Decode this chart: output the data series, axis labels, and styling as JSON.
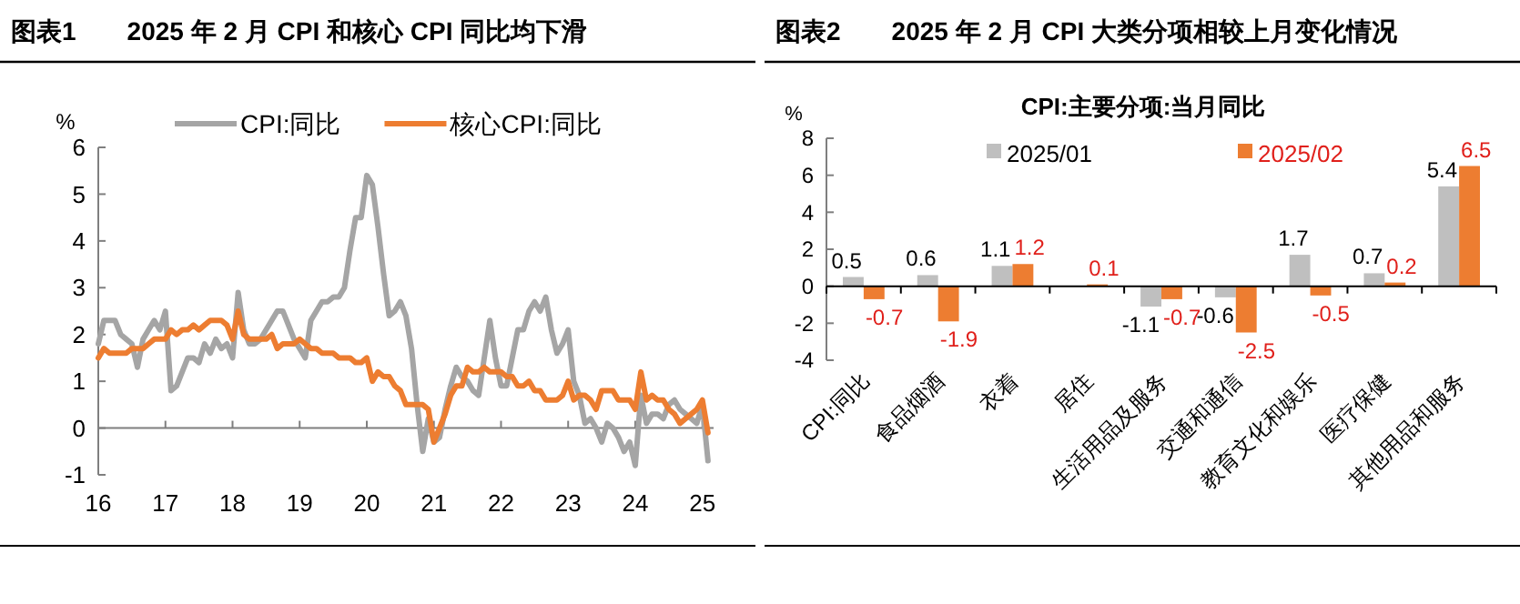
{
  "chart_data": [
    {
      "type": "line",
      "title": "图表1　　2025 年 2 月 CPI 和核心 CPI 同比均下滑",
      "ylabel": "%",
      "legend": "top",
      "x": [
        "2016-01",
        "2016-02",
        "2016-03",
        "2016-04",
        "2016-05",
        "2016-06",
        "2016-07",
        "2016-08",
        "2016-09",
        "2016-10",
        "2016-11",
        "2016-12",
        "2017-01",
        "2017-02",
        "2017-03",
        "2017-04",
        "2017-05",
        "2017-06",
        "2017-07",
        "2017-08",
        "2017-09",
        "2017-10",
        "2017-11",
        "2017-12",
        "2018-01",
        "2018-02",
        "2018-03",
        "2018-04",
        "2018-05",
        "2018-06",
        "2018-07",
        "2018-08",
        "2018-09",
        "2018-10",
        "2018-11",
        "2018-12",
        "2019-01",
        "2019-02",
        "2019-03",
        "2019-04",
        "2019-05",
        "2019-06",
        "2019-07",
        "2019-08",
        "2019-09",
        "2019-10",
        "2019-11",
        "2019-12",
        "2020-01",
        "2020-02",
        "2020-03",
        "2020-04",
        "2020-05",
        "2020-06",
        "2020-07",
        "2020-08",
        "2020-09",
        "2020-10",
        "2020-11",
        "2020-12",
        "2021-01",
        "2021-02",
        "2021-03",
        "2021-04",
        "2021-05",
        "2021-06",
        "2021-07",
        "2021-08",
        "2021-09",
        "2021-10",
        "2021-11",
        "2021-12",
        "2022-01",
        "2022-02",
        "2022-03",
        "2022-04",
        "2022-05",
        "2022-06",
        "2022-07",
        "2022-08",
        "2022-09",
        "2022-10",
        "2022-11",
        "2022-12",
        "2023-01",
        "2023-02",
        "2023-03",
        "2023-04",
        "2023-05",
        "2023-06",
        "2023-07",
        "2023-08",
        "2023-09",
        "2023-10",
        "2023-11",
        "2023-12",
        "2024-01",
        "2024-02",
        "2024-03",
        "2024-04",
        "2024-05",
        "2024-06",
        "2024-07",
        "2024-08",
        "2024-09",
        "2024-10",
        "2024-11",
        "2024-12",
        "2025-01",
        "2025-02"
      ],
      "series": [
        {
          "name": "CPI:同比",
          "color": "#a5a5a5",
          "values": [
            1.8,
            2.3,
            2.3,
            2.3,
            2.0,
            1.9,
            1.8,
            1.3,
            1.9,
            2.1,
            2.3,
            2.1,
            2.5,
            0.8,
            0.9,
            1.2,
            1.5,
            1.5,
            1.4,
            1.8,
            1.6,
            1.9,
            1.7,
            1.8,
            1.5,
            2.9,
            2.1,
            1.8,
            1.8,
            1.9,
            2.1,
            2.3,
            2.5,
            2.5,
            2.2,
            1.9,
            1.7,
            1.5,
            2.3,
            2.5,
            2.7,
            2.7,
            2.8,
            2.8,
            3.0,
            3.8,
            4.5,
            4.5,
            5.4,
            5.2,
            4.3,
            3.3,
            2.4,
            2.5,
            2.7,
            2.4,
            1.7,
            0.5,
            -0.5,
            0.2,
            -0.3,
            -0.2,
            0.4,
            0.9,
            1.3,
            1.1,
            1.0,
            0.8,
            0.7,
            1.5,
            2.3,
            1.5,
            0.9,
            0.9,
            1.5,
            2.1,
            2.1,
            2.5,
            2.7,
            2.5,
            2.8,
            2.1,
            1.6,
            1.8,
            2.1,
            1.0,
            0.7,
            0.1,
            0.2,
            0.0,
            -0.3,
            0.1,
            0.0,
            -0.2,
            -0.5,
            -0.3,
            -0.8,
            0.7,
            0.1,
            0.3,
            0.3,
            0.2,
            0.5,
            0.6,
            0.4,
            0.3,
            0.2,
            0.1,
            0.5,
            -0.7
          ]
        },
        {
          "name": "核心CPI:同比",
          "color": "#ed7d31",
          "values": [
            1.5,
            1.7,
            1.6,
            1.6,
            1.6,
            1.6,
            1.7,
            1.7,
            1.7,
            1.8,
            1.9,
            1.9,
            1.9,
            2.1,
            2.0,
            2.1,
            2.1,
            2.2,
            2.1,
            2.2,
            2.3,
            2.3,
            2.3,
            2.2,
            1.9,
            2.5,
            2.0,
            1.9,
            1.9,
            1.9,
            1.9,
            2.0,
            1.7,
            1.8,
            1.8,
            1.8,
            1.9,
            1.8,
            1.7,
            1.7,
            1.6,
            1.6,
            1.6,
            1.5,
            1.5,
            1.5,
            1.4,
            1.4,
            1.5,
            1.0,
            1.2,
            1.1,
            1.1,
            0.9,
            0.8,
            0.5,
            0.5,
            0.5,
            0.5,
            0.4,
            -0.3,
            0.0,
            0.3,
            0.7,
            0.9,
            0.9,
            1.3,
            1.2,
            1.2,
            1.3,
            1.2,
            1.2,
            1.2,
            1.1,
            1.1,
            0.9,
            0.9,
            1.0,
            0.8,
            0.8,
            0.6,
            0.6,
            0.6,
            0.7,
            1.0,
            0.6,
            0.7,
            0.7,
            0.6,
            0.4,
            0.8,
            0.8,
            0.8,
            0.6,
            0.6,
            0.6,
            0.4,
            1.2,
            0.6,
            0.7,
            0.6,
            0.6,
            0.4,
            0.3,
            0.1,
            0.2,
            0.3,
            0.4,
            0.6,
            -0.1
          ]
        }
      ],
      "xlim": [
        "2016-01",
        "2025-03"
      ],
      "xticks": [
        {
          "value": "2016-01",
          "label": "16"
        },
        {
          "value": "2017-01",
          "label": "17"
        },
        {
          "value": "2018-01",
          "label": "18"
        },
        {
          "value": "2019-01",
          "label": "19"
        },
        {
          "value": "2020-01",
          "label": "20"
        },
        {
          "value": "2021-01",
          "label": "21"
        },
        {
          "value": "2022-01",
          "label": "22"
        },
        {
          "value": "2023-01",
          "label": "23"
        },
        {
          "value": "2024-01",
          "label": "24"
        },
        {
          "value": "2025-01",
          "label": "25"
        }
      ],
      "ylim": [
        -1,
        6
      ],
      "yticks": [
        -1,
        0,
        1,
        2,
        3,
        4,
        5,
        6
      ]
    },
    {
      "type": "bar",
      "title": "图表2　　2025 年 2 月 CPI 大类分项相较上月变化情况",
      "subtitle": "CPI:主要分项:当月同比",
      "ylabel": "%",
      "legend": "top",
      "categories": [
        "CPI:同比",
        "食品烟酒",
        "衣着",
        "居住",
        "生活用品及服务",
        "交通和通信",
        "教育文化和娱乐",
        "医疗保健",
        "其他用品和服务"
      ],
      "series": [
        {
          "name": "2025/01",
          "color": "#bfbfbf",
          "values": [
            0.5,
            0.6,
            1.1,
            0,
            -1.1,
            -0.6,
            1.7,
            0.7,
            5.4
          ],
          "value_labels": [
            "0.5",
            "0.6",
            "1.1",
            null,
            "-1.1",
            "-0.6",
            "1.7",
            "0.7",
            "5.4"
          ]
        },
        {
          "name": "2025/02",
          "color": "#ed7d31",
          "values": [
            -0.7,
            -1.9,
            1.2,
            0.1,
            -0.7,
            -2.5,
            -0.5,
            0.2,
            6.5
          ],
          "value_labels": [
            "-0.7",
            "-1.9",
            "1.2",
            "0.1",
            "-0.7",
            "-2.5",
            "-0.5",
            "0.2",
            "6.5"
          ]
        }
      ],
      "ylim": [
        -4,
        8
      ],
      "yticks": [
        -4,
        -2,
        0,
        2,
        4,
        6,
        8
      ]
    }
  ]
}
